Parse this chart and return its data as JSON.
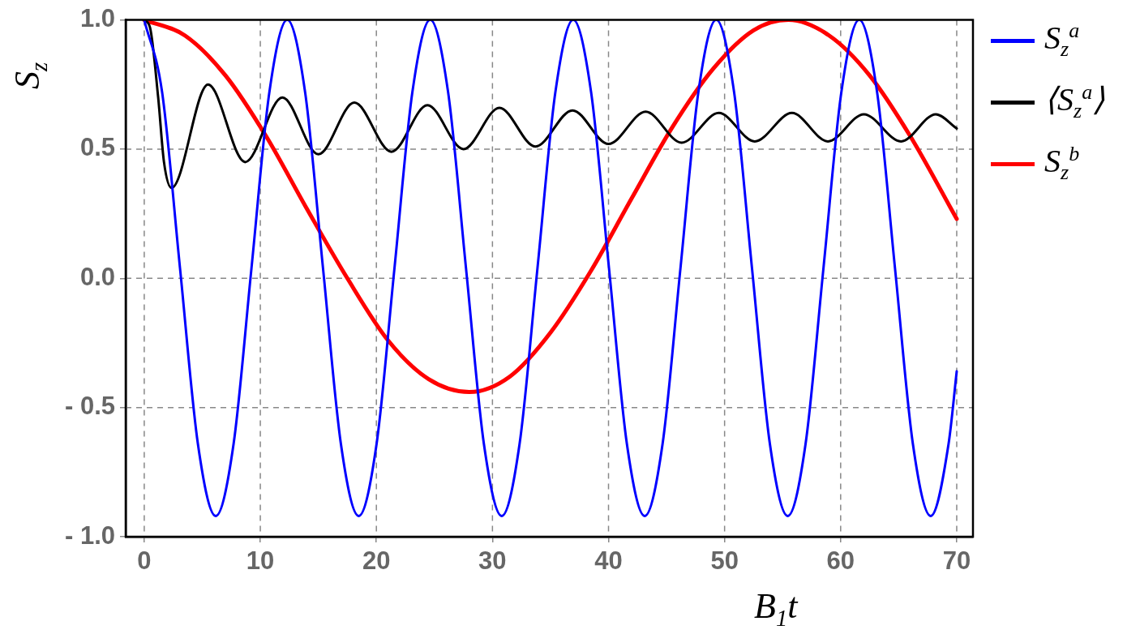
{
  "chart_data": {
    "type": "line",
    "xlabel": "B$_{1}$t",
    "ylabel": "S$_{z}$",
    "xlim": [
      -1.6,
      71.4
    ],
    "xticks": [
      0,
      10,
      20,
      30,
      40,
      50,
      60,
      70
    ],
    "ylim": [
      -1,
      1
    ],
    "yticks": [
      {
        "value": -1,
        "label": "- 1.0"
      },
      {
        "value": -0.5,
        "label": "- 0.5"
      },
      {
        "value": 0,
        "label": "0.0"
      },
      {
        "value": 0.5,
        "label": "0.5"
      },
      {
        "value": 1,
        "label": "1.0"
      }
    ],
    "grid": true,
    "legend": "top right",
    "line_style": "solid",
    "marker": "none",
    "series": [
      {
        "name": "S$_{z}$$^{a}$",
        "color": "#0000ff",
        "x": [
          0,
          1.54,
          3.08,
          4.62,
          6.16,
          7.7,
          9.24,
          10.78,
          12.32,
          13.86,
          15.4,
          16.94,
          18.48,
          20.02,
          21.56,
          23.1,
          24.64,
          26.18,
          27.72,
          29.26,
          30.8,
          32.34,
          33.88,
          35.42,
          36.96,
          38.5,
          40.04,
          41.58,
          43.12,
          44.66,
          46.2,
          47.74,
          49.28,
          50.82,
          52.36,
          53.9,
          55.44,
          56.98,
          58.52,
          60.06,
          61.6,
          63.14,
          64.68,
          66.22,
          67.76,
          69.3,
          70
        ],
        "values": [
          1,
          0.72,
          0.04,
          -0.64,
          -0.92,
          -0.64,
          0.04,
          0.72,
          1,
          0.72,
          0.04,
          -0.64,
          -0.92,
          -0.64,
          0.04,
          0.72,
          1,
          0.72,
          0.04,
          -0.64,
          -0.92,
          -0.64,
          0.04,
          0.72,
          1,
          0.72,
          0.04,
          -0.64,
          -0.92,
          -0.64,
          0.04,
          0.72,
          1,
          0.72,
          0.04,
          -0.64,
          -0.92,
          -0.64,
          0.04,
          0.72,
          1,
          0.72,
          0.04,
          -0.64,
          -0.92,
          -0.64,
          -0.36
        ]
      },
      {
        "name": "⟨S$_{z}$$^{a}$⟩",
        "color": "#000000",
        "x": [
          0,
          0.5,
          1.2,
          1.7,
          2.35,
          5.5,
          8.7,
          11.9,
          15.0,
          18.1,
          21.3,
          24.4,
          27.5,
          30.6,
          33.7,
          36.9,
          40.0,
          43.2,
          46.3,
          49.5,
          52.6,
          55.8,
          58.9,
          62.0,
          65.2,
          68.2,
          70
        ],
        "values": [
          1,
          0.97,
          0.7,
          0.45,
          0.35,
          0.75,
          0.45,
          0.7,
          0.48,
          0.68,
          0.49,
          0.67,
          0.5,
          0.66,
          0.51,
          0.65,
          0.52,
          0.645,
          0.525,
          0.64,
          0.53,
          0.64,
          0.53,
          0.635,
          0.53,
          0.635,
          0.58
        ]
      },
      {
        "name": "S$_{z}$$^{b}$",
        "color": "#ff0000",
        "x": [
          0,
          3.5,
          7,
          10.5,
          14,
          17.5,
          21,
          24.5,
          28,
          31.5,
          35,
          38.5,
          42,
          45.5,
          49,
          52.5,
          55.5,
          59,
          62.5,
          66,
          70
        ],
        "values": [
          1,
          0.94,
          0.785,
          0.55,
          0.27,
          0,
          -0.24,
          -0.39,
          -0.44,
          -0.38,
          -0.21,
          0.03,
          0.31,
          0.585,
          0.81,
          0.96,
          1,
          0.94,
          0.785,
          0.55,
          0.23
        ]
      }
    ]
  }
}
